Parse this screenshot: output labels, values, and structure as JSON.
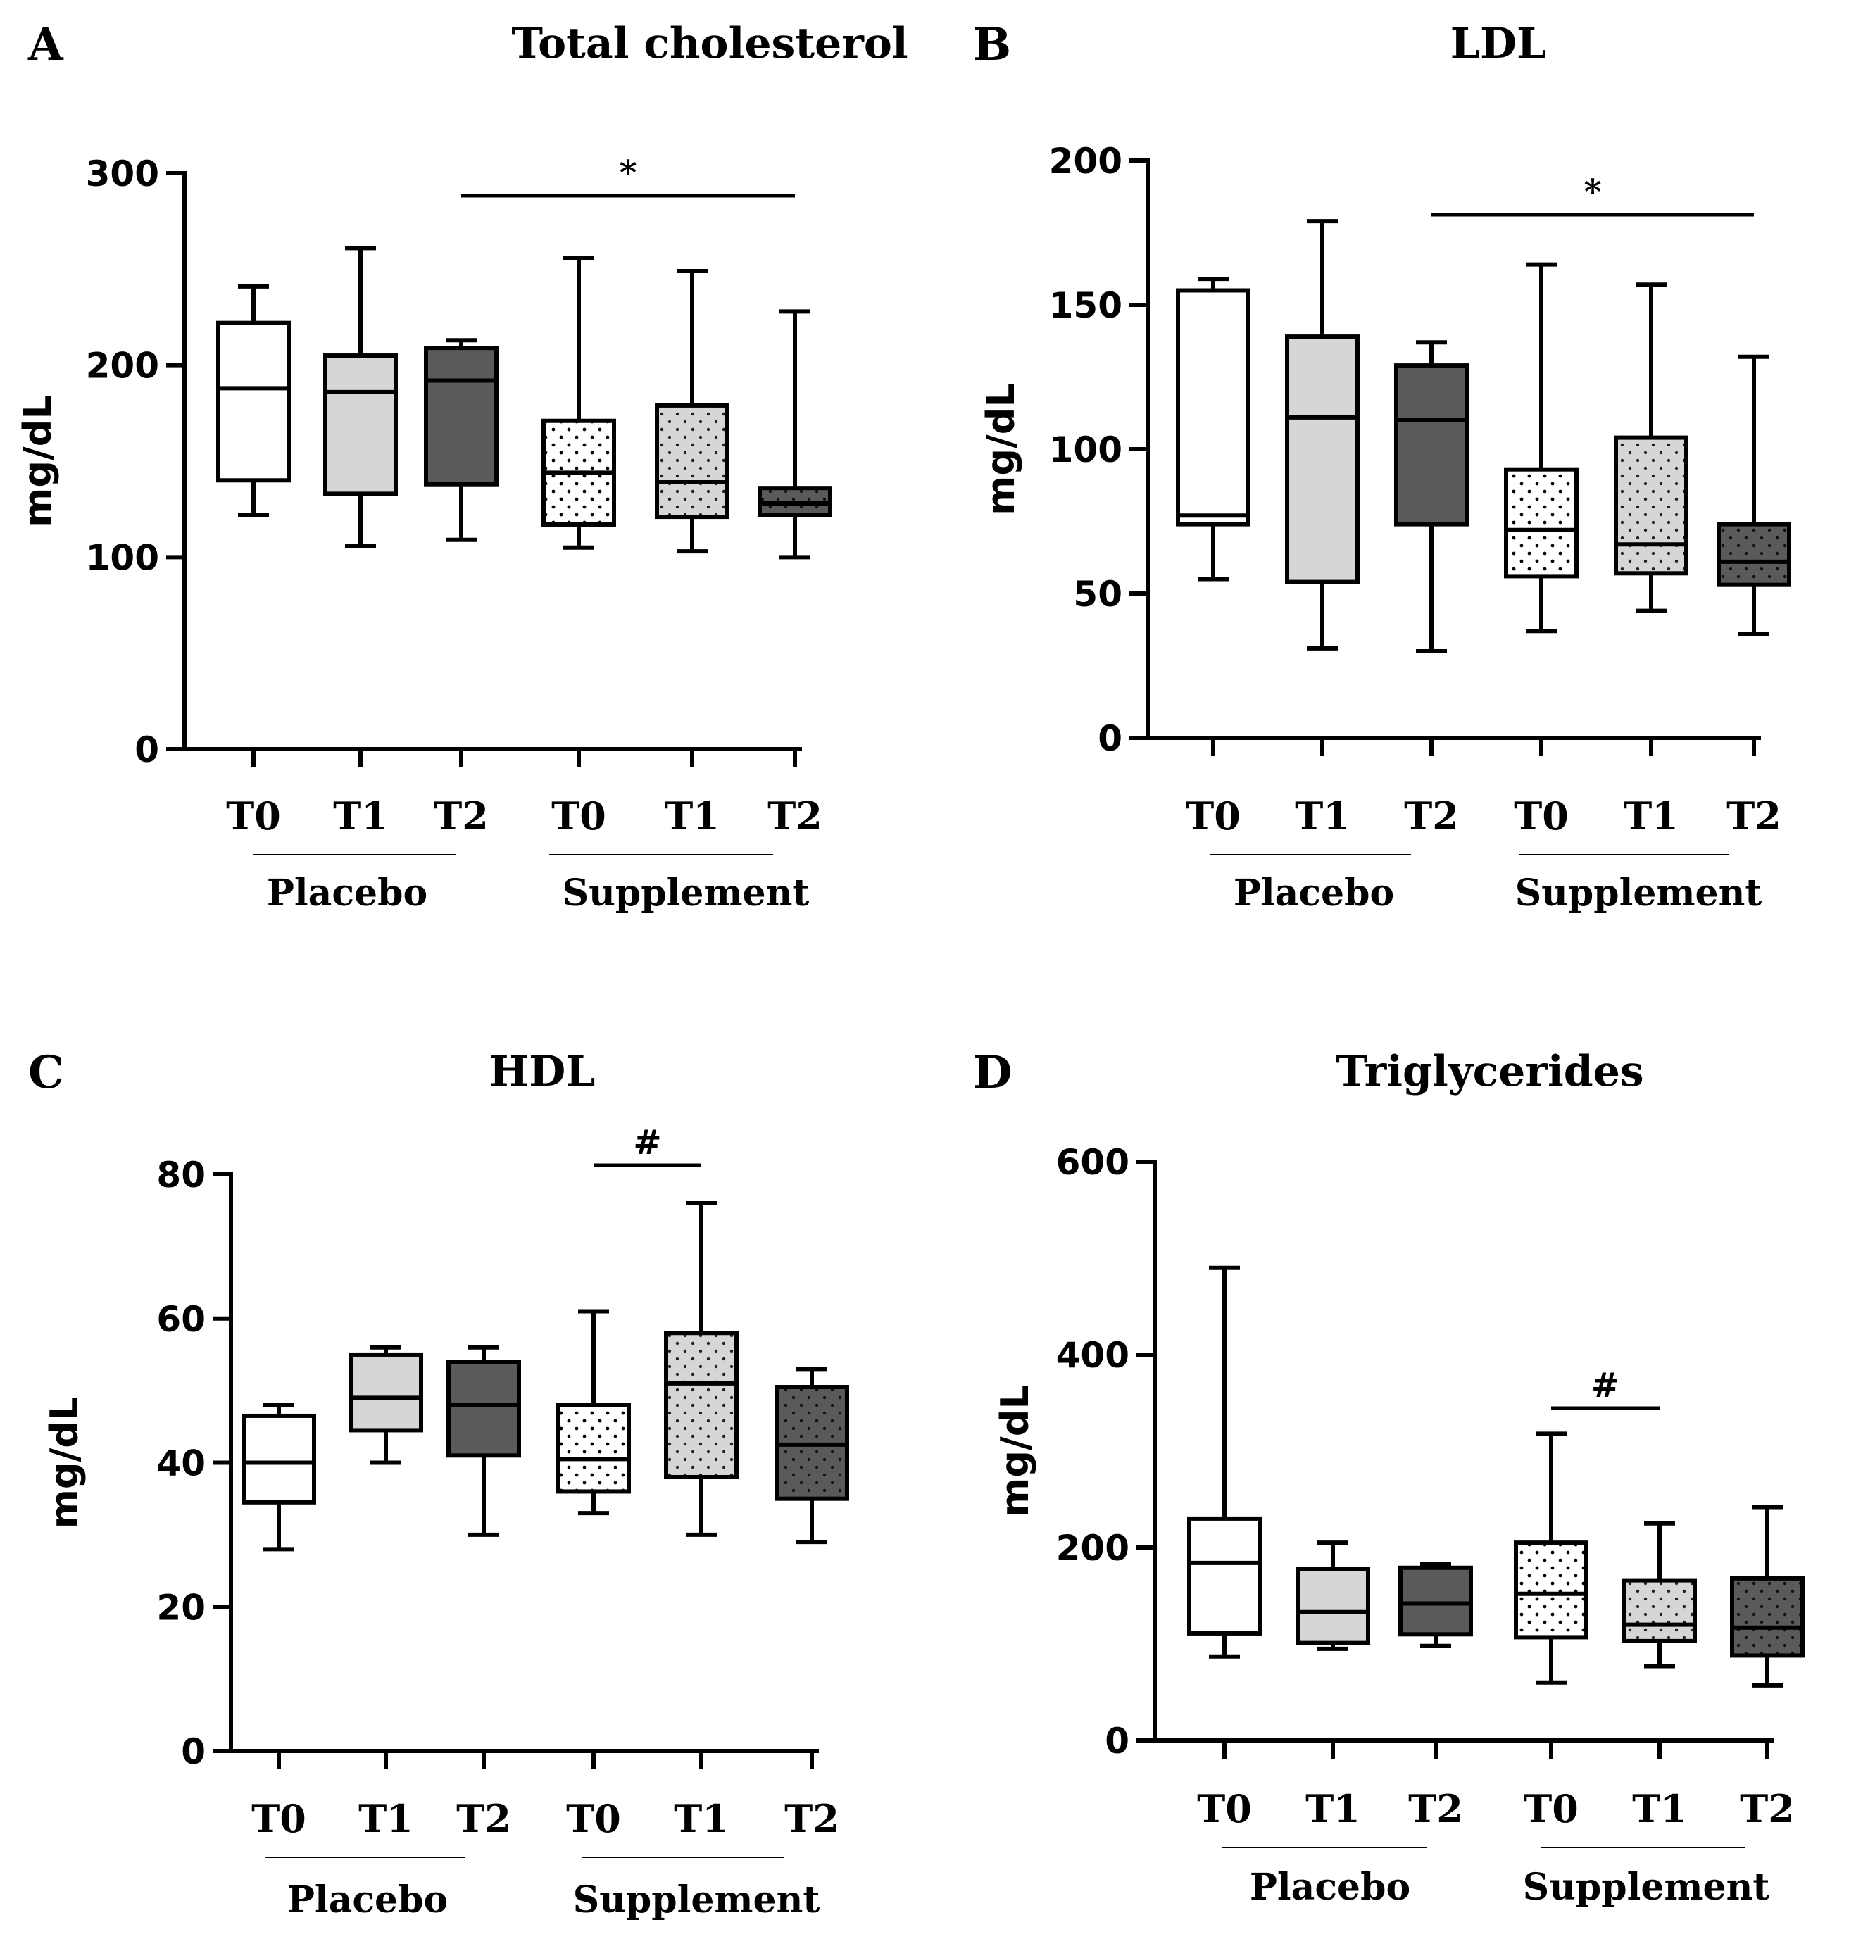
{
  "chart_data": [
    {
      "type": "box",
      "panel": "A",
      "title": "Total cholesterol",
      "ylabel": "mg/dL",
      "ylim": [
        0,
        300
      ],
      "yticks": [
        "0",
        "100",
        "200",
        "300"
      ],
      "categories": [
        "T0",
        "T1",
        "T2",
        "T0",
        "T1",
        "T2"
      ],
      "groups": [
        {
          "label": "Placebo",
          "members": [
            0,
            1,
            2
          ]
        },
        {
          "label": "Supplement",
          "members": [
            3,
            4,
            5
          ]
        }
      ],
      "boxes": [
        {
          "min": 122,
          "q1": 140,
          "median": 188,
          "q3": 222,
          "max": 241,
          "fill": "white"
        },
        {
          "min": 106,
          "q1": 133,
          "median": 186,
          "q3": 205,
          "max": 261,
          "fill": "light-gray"
        },
        {
          "min": 109,
          "q1": 138,
          "median": 192,
          "q3": 209,
          "max": 213,
          "fill": "dark-gray"
        },
        {
          "min": 105,
          "q1": 117,
          "median": 144,
          "q3": 171,
          "max": 256,
          "fill": "white-dotted"
        },
        {
          "min": 103,
          "q1": 121,
          "median": 139,
          "q3": 179,
          "max": 249,
          "fill": "light-gray-dotted"
        },
        {
          "min": 100,
          "q1": 122,
          "median": 128,
          "q3": 136,
          "max": 228,
          "fill": "dark-gray-dotted"
        }
      ],
      "significance": [
        {
          "from": 2,
          "to": 5,
          "symbol": "*"
        }
      ]
    },
    {
      "type": "box",
      "panel": "B",
      "title": "LDL",
      "ylabel": "mg/dL",
      "ylim": [
        0,
        200
      ],
      "yticks": [
        "0",
        "50",
        "100",
        "150",
        "200"
      ],
      "categories": [
        "T0",
        "T1",
        "T2",
        "T0",
        "T1",
        "T2"
      ],
      "groups": [
        {
          "label": "Placebo",
          "members": [
            0,
            1,
            2
          ]
        },
        {
          "label": "Supplement",
          "members": [
            3,
            4,
            5
          ]
        }
      ],
      "boxes": [
        {
          "min": 55,
          "q1": 74,
          "median": 77,
          "q3": 155,
          "max": 159,
          "fill": "white"
        },
        {
          "min": 31,
          "q1": 54,
          "median": 111,
          "q3": 139,
          "max": 179,
          "fill": "light-gray"
        },
        {
          "min": 30,
          "q1": 74,
          "median": 110,
          "q3": 129,
          "max": 137,
          "fill": "dark-gray"
        },
        {
          "min": 37,
          "q1": 56,
          "median": 72,
          "q3": 93,
          "max": 164,
          "fill": "white-dotted"
        },
        {
          "min": 44,
          "q1": 57,
          "median": 67,
          "q3": 104,
          "max": 157,
          "fill": "light-gray-dotted"
        },
        {
          "min": 36,
          "q1": 53,
          "median": 61,
          "q3": 74,
          "max": 132,
          "fill": "dark-gray-dotted"
        }
      ],
      "significance": [
        {
          "from": 2,
          "to": 5,
          "symbol": "*"
        }
      ]
    },
    {
      "type": "box",
      "panel": "C",
      "title": "HDL",
      "ylabel": "mg/dL",
      "ylim": [
        0,
        80
      ],
      "yticks": [
        "0",
        "20",
        "40",
        "60",
        "80"
      ],
      "categories": [
        "T0",
        "T1",
        "T2",
        "T0",
        "T1",
        "T2"
      ],
      "groups": [
        {
          "label": "Placebo",
          "members": [
            0,
            1,
            2
          ]
        },
        {
          "label": "Supplement",
          "members": [
            3,
            4,
            5
          ]
        }
      ],
      "boxes": [
        {
          "min": 28,
          "q1": 34.5,
          "median": 40,
          "q3": 46.5,
          "max": 48,
          "fill": "white"
        },
        {
          "min": 40,
          "q1": 44.5,
          "median": 49,
          "q3": 55,
          "max": 56,
          "fill": "light-gray"
        },
        {
          "min": 30,
          "q1": 41,
          "median": 48,
          "q3": 54,
          "max": 56,
          "fill": "dark-gray"
        },
        {
          "min": 33,
          "q1": 36,
          "median": 40.5,
          "q3": 48,
          "max": 61,
          "fill": "white-dotted"
        },
        {
          "min": 30,
          "q1": 38,
          "median": 51,
          "q3": 58,
          "max": 76,
          "fill": "light-gray-dotted"
        },
        {
          "min": 29,
          "q1": 35,
          "median": 42.5,
          "q3": 50.5,
          "max": 53,
          "fill": "dark-gray-dotted"
        }
      ],
      "significance": [
        {
          "from": 3,
          "to": 4,
          "symbol": "#"
        }
      ]
    },
    {
      "type": "box",
      "panel": "D",
      "title": "Triglycerides",
      "ylabel": "mg/dL",
      "ylim": [
        0,
        600
      ],
      "yticks": [
        "0",
        "200",
        "400",
        "600"
      ],
      "categories": [
        "T0",
        "T1",
        "T2",
        "T0",
        "T1",
        "T2"
      ],
      "groups": [
        {
          "label": "Placebo",
          "members": [
            0,
            1,
            2
          ]
        },
        {
          "label": "Supplement",
          "members": [
            3,
            4,
            5
          ]
        }
      ],
      "boxes": [
        {
          "min": 87,
          "q1": 111,
          "median": 184,
          "q3": 230,
          "max": 490,
          "fill": "white"
        },
        {
          "min": 95,
          "q1": 101,
          "median": 133,
          "q3": 178,
          "max": 205,
          "fill": "light-gray"
        },
        {
          "min": 98,
          "q1": 110,
          "median": 142,
          "q3": 179,
          "max": 183,
          "fill": "dark-gray"
        },
        {
          "min": 60,
          "q1": 107,
          "median": 152,
          "q3": 205,
          "max": 318,
          "fill": "white-dotted"
        },
        {
          "min": 77,
          "q1": 103,
          "median": 120,
          "q3": 166,
          "max": 225,
          "fill": "light-gray-dotted"
        },
        {
          "min": 57,
          "q1": 88,
          "median": 117,
          "q3": 168,
          "max": 242,
          "fill": "dark-gray-dotted"
        }
      ],
      "significance": [
        {
          "from": 3,
          "to": 4,
          "symbol": "#"
        }
      ]
    }
  ],
  "colors": {
    "white": "#ffffff",
    "light-gray": "#d6d6d6",
    "dark-gray": "#5a5a5a",
    "stroke": "#000000"
  }
}
